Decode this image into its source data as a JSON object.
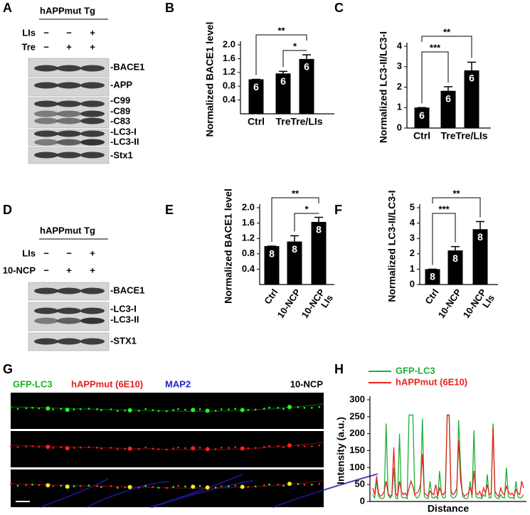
{
  "panel_labels": [
    "A",
    "B",
    "C",
    "D",
    "E",
    "F",
    "G",
    "H"
  ],
  "blots": [
    {
      "header": "hAPPmut Tg",
      "conditions": [
        {
          "name": "LIs",
          "signs": [
            "−",
            "−",
            "+"
          ]
        },
        {
          "name": "Tre",
          "signs": [
            "−",
            "+",
            "+"
          ]
        }
      ],
      "bands": [
        "-BACE1",
        "-APP",
        "-C99",
        "-C89",
        "-C83",
        "-LC3-I",
        "-LC3-II",
        "-Stx1"
      ]
    },
    {
      "header": "hAPPmut Tg",
      "conditions": [
        {
          "name": "LIs",
          "signs": [
            "−",
            "−",
            "+"
          ]
        },
        {
          "name": "10-NCP",
          "signs": [
            "−",
            "+",
            "+"
          ]
        }
      ],
      "bands": [
        "-BACE1",
        "-LC3-I",
        "-LC3-II",
        "-STX1"
      ]
    }
  ],
  "image": {
    "channels": [
      {
        "name": "GFP-LC3",
        "color": "#1db31d"
      },
      {
        "name": "hAPPmut (6E10)",
        "color": "#e0201a"
      },
      {
        "name": "MAP2",
        "color": "#2020d0"
      }
    ],
    "treatment": "10-NCP"
  },
  "chart_data": [
    {
      "type": "bar",
      "ylabel": "Normalized BACE1 level",
      "categories": [
        "Ctrl",
        "Tre",
        "Tre/LIs"
      ],
      "values": [
        1.0,
        1.17,
        1.59
      ],
      "errors": [
        0,
        0.06,
        0.12
      ],
      "n_labels": [
        "6",
        "6",
        "6"
      ],
      "color": "#000000",
      "ylim": [
        0,
        2
      ],
      "yticks": [
        0.4,
        0.8,
        1.2,
        1.6,
        {
          "value": 2,
          "label": "2.0"
        }
      ],
      "comparisons": [
        {
          "label": "**",
          "from": 0,
          "to": 2
        },
        {
          "label": "*",
          "from": 1,
          "to": 2
        }
      ]
    },
    {
      "type": "bar",
      "ylabel": "Normalized LC3-II/LC3-I",
      "categories": [
        "Ctrl",
        "Tre",
        "Tre/LIs"
      ],
      "values": [
        1.0,
        1.82,
        2.82
      ],
      "errors": [
        0,
        0.2,
        0.4
      ],
      "n_labels": [
        "6",
        "6",
        "6"
      ],
      "color": "#000000",
      "ylim": [
        0,
        4
      ],
      "yticks": [
        0,
        1,
        2,
        3,
        4
      ],
      "comparisons": [
        {
          "label": "**",
          "from": 0,
          "to": 2
        },
        {
          "label": "***",
          "from": 0,
          "to": 1
        }
      ]
    },
    {
      "type": "bar",
      "ylabel": "Normalized BACE1 level",
      "categories": [
        "Ctrl",
        "10-NCP",
        "10-NCP\nLIs"
      ],
      "values": [
        1.0,
        1.12,
        1.63
      ],
      "errors": [
        0,
        0.15,
        0.12
      ],
      "n_labels": [
        "8",
        "8",
        "8"
      ],
      "color": "#000000",
      "ylim": [
        0,
        2
      ],
      "yticks": [
        0.4,
        0.8,
        1.2,
        1.6,
        {
          "value": 2,
          "label": "2.0"
        }
      ],
      "comparisons": [
        {
          "label": "**",
          "from": 0,
          "to": 2
        },
        {
          "label": "*",
          "from": 1,
          "to": 2
        }
      ]
    },
    {
      "type": "bar",
      "ylabel": "Normalized LC3-II/LC3-I",
      "categories": [
        "Ctrl",
        "10-NCP",
        "10-NCP\nLIs"
      ],
      "values": [
        1.0,
        2.22,
        3.6
      ],
      "errors": [
        0,
        0.25,
        0.5
      ],
      "n_labels": [
        "8",
        "8",
        "8"
      ],
      "color": "#000000",
      "ylim": [
        0,
        5
      ],
      "yticks": [
        0,
        1,
        2,
        3,
        4,
        5
      ],
      "comparisons": [
        {
          "label": "**",
          "from": 0,
          "to": 2
        },
        {
          "label": "***",
          "from": 0,
          "to": 1
        }
      ]
    },
    {
      "type": "line",
      "ylabel": "Intensity (a.u.)",
      "xlabel": "Distance",
      "ylim": [
        0,
        300
      ],
      "yticks": [
        0,
        50,
        100,
        150,
        200,
        250,
        300
      ],
      "series": [
        {
          "name": "GFP-LC3",
          "color": "#1fae3a",
          "values": [
            20,
            10,
            60,
            15,
            10,
            8,
            12,
            230,
            20,
            10,
            15,
            100,
            10,
            8,
            200,
            15,
            10,
            12,
            8,
            255,
            255,
            255,
            20,
            10,
            12,
            30,
            245,
            15,
            10,
            8,
            60,
            12,
            10,
            15,
            8,
            90,
            20,
            10,
            12,
            255,
            255,
            15,
            10,
            12,
            20,
            240,
            100,
            15,
            10,
            8,
            12,
            60,
            10,
            210,
            15,
            10,
            12,
            8,
            20,
            15,
            80,
            10,
            12,
            230,
            15,
            10,
            8,
            20,
            12,
            10,
            100,
            15,
            10,
            12,
            8,
            60,
            15,
            10,
            12,
            20
          ]
        },
        {
          "name": "hAPPmut (6E10)",
          "color": "#e8231b",
          "values": [
            40,
            20,
            75,
            25,
            15,
            20,
            30,
            60,
            25,
            15,
            20,
            160,
            25,
            15,
            60,
            30,
            20,
            25,
            15,
            40,
            60,
            45,
            20,
            25,
            30,
            50,
            140,
            25,
            20,
            15,
            30,
            25,
            20,
            50,
            15,
            40,
            25,
            20,
            30,
            255,
            255,
            30,
            20,
            25,
            40,
            180,
            60,
            25,
            15,
            20,
            25,
            40,
            20,
            90,
            25,
            20,
            30,
            15,
            40,
            25,
            50,
            20,
            25,
            220,
            30,
            20,
            15,
            40,
            25,
            20,
            45,
            30,
            20,
            25,
            15,
            35,
            25,
            20,
            60,
            40
          ]
        }
      ]
    }
  ]
}
